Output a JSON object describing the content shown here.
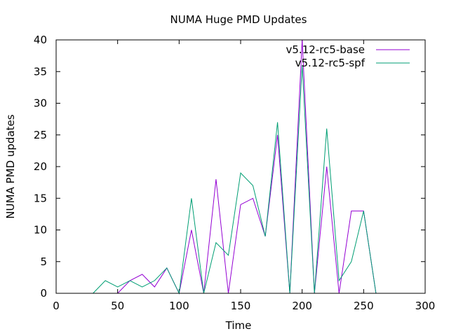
{
  "chart_data": {
    "type": "line",
    "title": "NUMA Huge PMD Updates",
    "xlabel": "Time",
    "ylabel": "NUMA PMD updates",
    "xlim": [
      0,
      300
    ],
    "ylim": [
      0,
      40
    ],
    "xticks": [
      0,
      50,
      100,
      150,
      200,
      250,
      300
    ],
    "yticks": [
      0,
      5,
      10,
      15,
      20,
      25,
      30,
      35,
      40
    ],
    "grid": false,
    "legend_position": "top-right",
    "series": [
      {
        "name": "v5.12-rc5-base",
        "color": "#9400d3",
        "x": [
          30,
          40,
          50,
          60,
          70,
          80,
          90,
          100,
          110,
          120,
          130,
          140,
          150,
          160,
          170,
          180,
          190,
          200,
          210,
          220,
          230,
          240,
          250,
          260
        ],
        "y": [
          0,
          0,
          0,
          2,
          3,
          1,
          4,
          0,
          10,
          0,
          18,
          0,
          14,
          15,
          9,
          25,
          0,
          40,
          0,
          20,
          0,
          13,
          13,
          0
        ]
      },
      {
        "name": "v5.12-rc5-spf",
        "color": "#009e73",
        "x": [
          30,
          40,
          50,
          60,
          70,
          80,
          90,
          100,
          110,
          120,
          130,
          140,
          150,
          160,
          170,
          180,
          190,
          200,
          210,
          220,
          230,
          240,
          250,
          260
        ],
        "y": [
          0,
          2,
          1,
          2,
          1,
          2,
          4,
          0,
          15,
          0,
          8,
          6,
          19,
          17,
          9,
          27,
          0,
          36,
          0,
          26,
          2,
          5,
          13,
          0
        ]
      }
    ]
  }
}
